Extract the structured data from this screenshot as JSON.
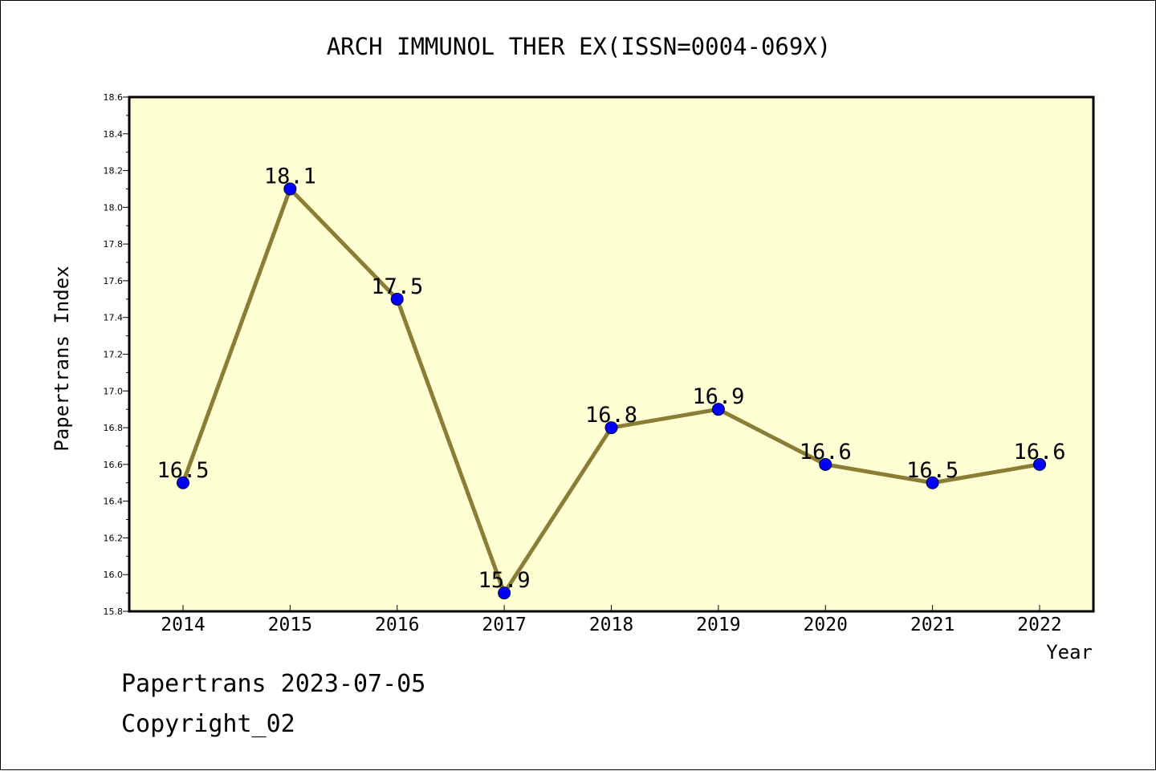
{
  "chart_data": {
    "type": "line",
    "title": "ARCH IMMUNOL THER EX(ISSN=0004-069X)",
    "xlabel": "Year",
    "ylabel": "Papertrans Index",
    "categories": [
      "2014",
      "2015",
      "2016",
      "2017",
      "2018",
      "2019",
      "2020",
      "2021",
      "2022"
    ],
    "series": [
      {
        "values": [
          16.5,
          18.1,
          17.5,
          15.9,
          16.8,
          16.9,
          16.6,
          16.5,
          16.6
        ]
      }
    ],
    "data_labels": [
      "16.5",
      "18.1",
      "17.5",
      "15.9",
      "16.8",
      "16.9",
      "16.6",
      "16.5",
      "16.6"
    ],
    "ylim": [
      15.8,
      18.6
    ],
    "yticks": [
      "15.8",
      "16.0",
      "16.2",
      "16.4",
      "16.6",
      "16.8",
      "17.0",
      "17.2",
      "17.4",
      "17.6",
      "17.8",
      "18.0",
      "18.2",
      "18.4",
      "18.6"
    ],
    "grid": false,
    "legend": "none",
    "colors": {
      "plot_background": "#ffffd4",
      "line": "#8b7d35",
      "marker": "#0000ff"
    }
  },
  "footer": {
    "stamp": "Papertrans 2023-07-05",
    "copyright": "Copyright_02"
  }
}
